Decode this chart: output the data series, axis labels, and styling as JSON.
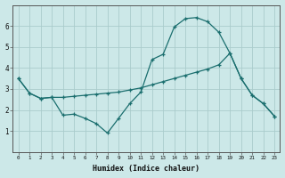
{
  "xlabel": "Humidex (Indice chaleur)",
  "bg_color": "#cce8e8",
  "line_color": "#1a6e6e",
  "grid_color": "#aacccc",
  "line1": {
    "x": [
      0,
      1,
      2,
      3,
      4,
      5,
      6,
      7,
      8,
      9,
      10,
      11,
      12,
      13,
      14,
      15,
      16,
      17,
      18,
      19,
      20,
      21,
      22,
      23
    ],
    "y": [
      3.5,
      2.8,
      2.55,
      2.6,
      1.75,
      1.8,
      1.6,
      1.35,
      0.9,
      1.6,
      2.3,
      2.85,
      4.4,
      4.65,
      5.95,
      6.35,
      6.4,
      6.2,
      5.7,
      4.7,
      3.5,
      2.7,
      2.3,
      1.7
    ]
  },
  "line2": {
    "x": [
      0,
      1,
      2,
      3,
      4,
      5,
      6,
      7,
      8,
      9,
      10,
      11,
      12,
      13,
      14,
      15,
      16,
      17,
      18,
      19,
      20,
      21,
      22,
      23
    ],
    "y": [
      3.5,
      2.8,
      2.55,
      2.6,
      2.6,
      2.65,
      2.7,
      2.75,
      2.8,
      2.85,
      2.95,
      3.05,
      3.2,
      3.35,
      3.5,
      3.65,
      3.8,
      3.95,
      4.15,
      4.7,
      3.5,
      2.7,
      2.3,
      1.7
    ]
  },
  "ylim": [
    0,
    7
  ],
  "yticks": [
    1,
    2,
    3,
    4,
    5,
    6
  ],
  "xticks": [
    0,
    1,
    2,
    3,
    4,
    5,
    6,
    7,
    8,
    9,
    10,
    11,
    12,
    13,
    14,
    15,
    16,
    17,
    18,
    19,
    20,
    21,
    22,
    23
  ],
  "xlim": [
    -0.5,
    23.5
  ]
}
